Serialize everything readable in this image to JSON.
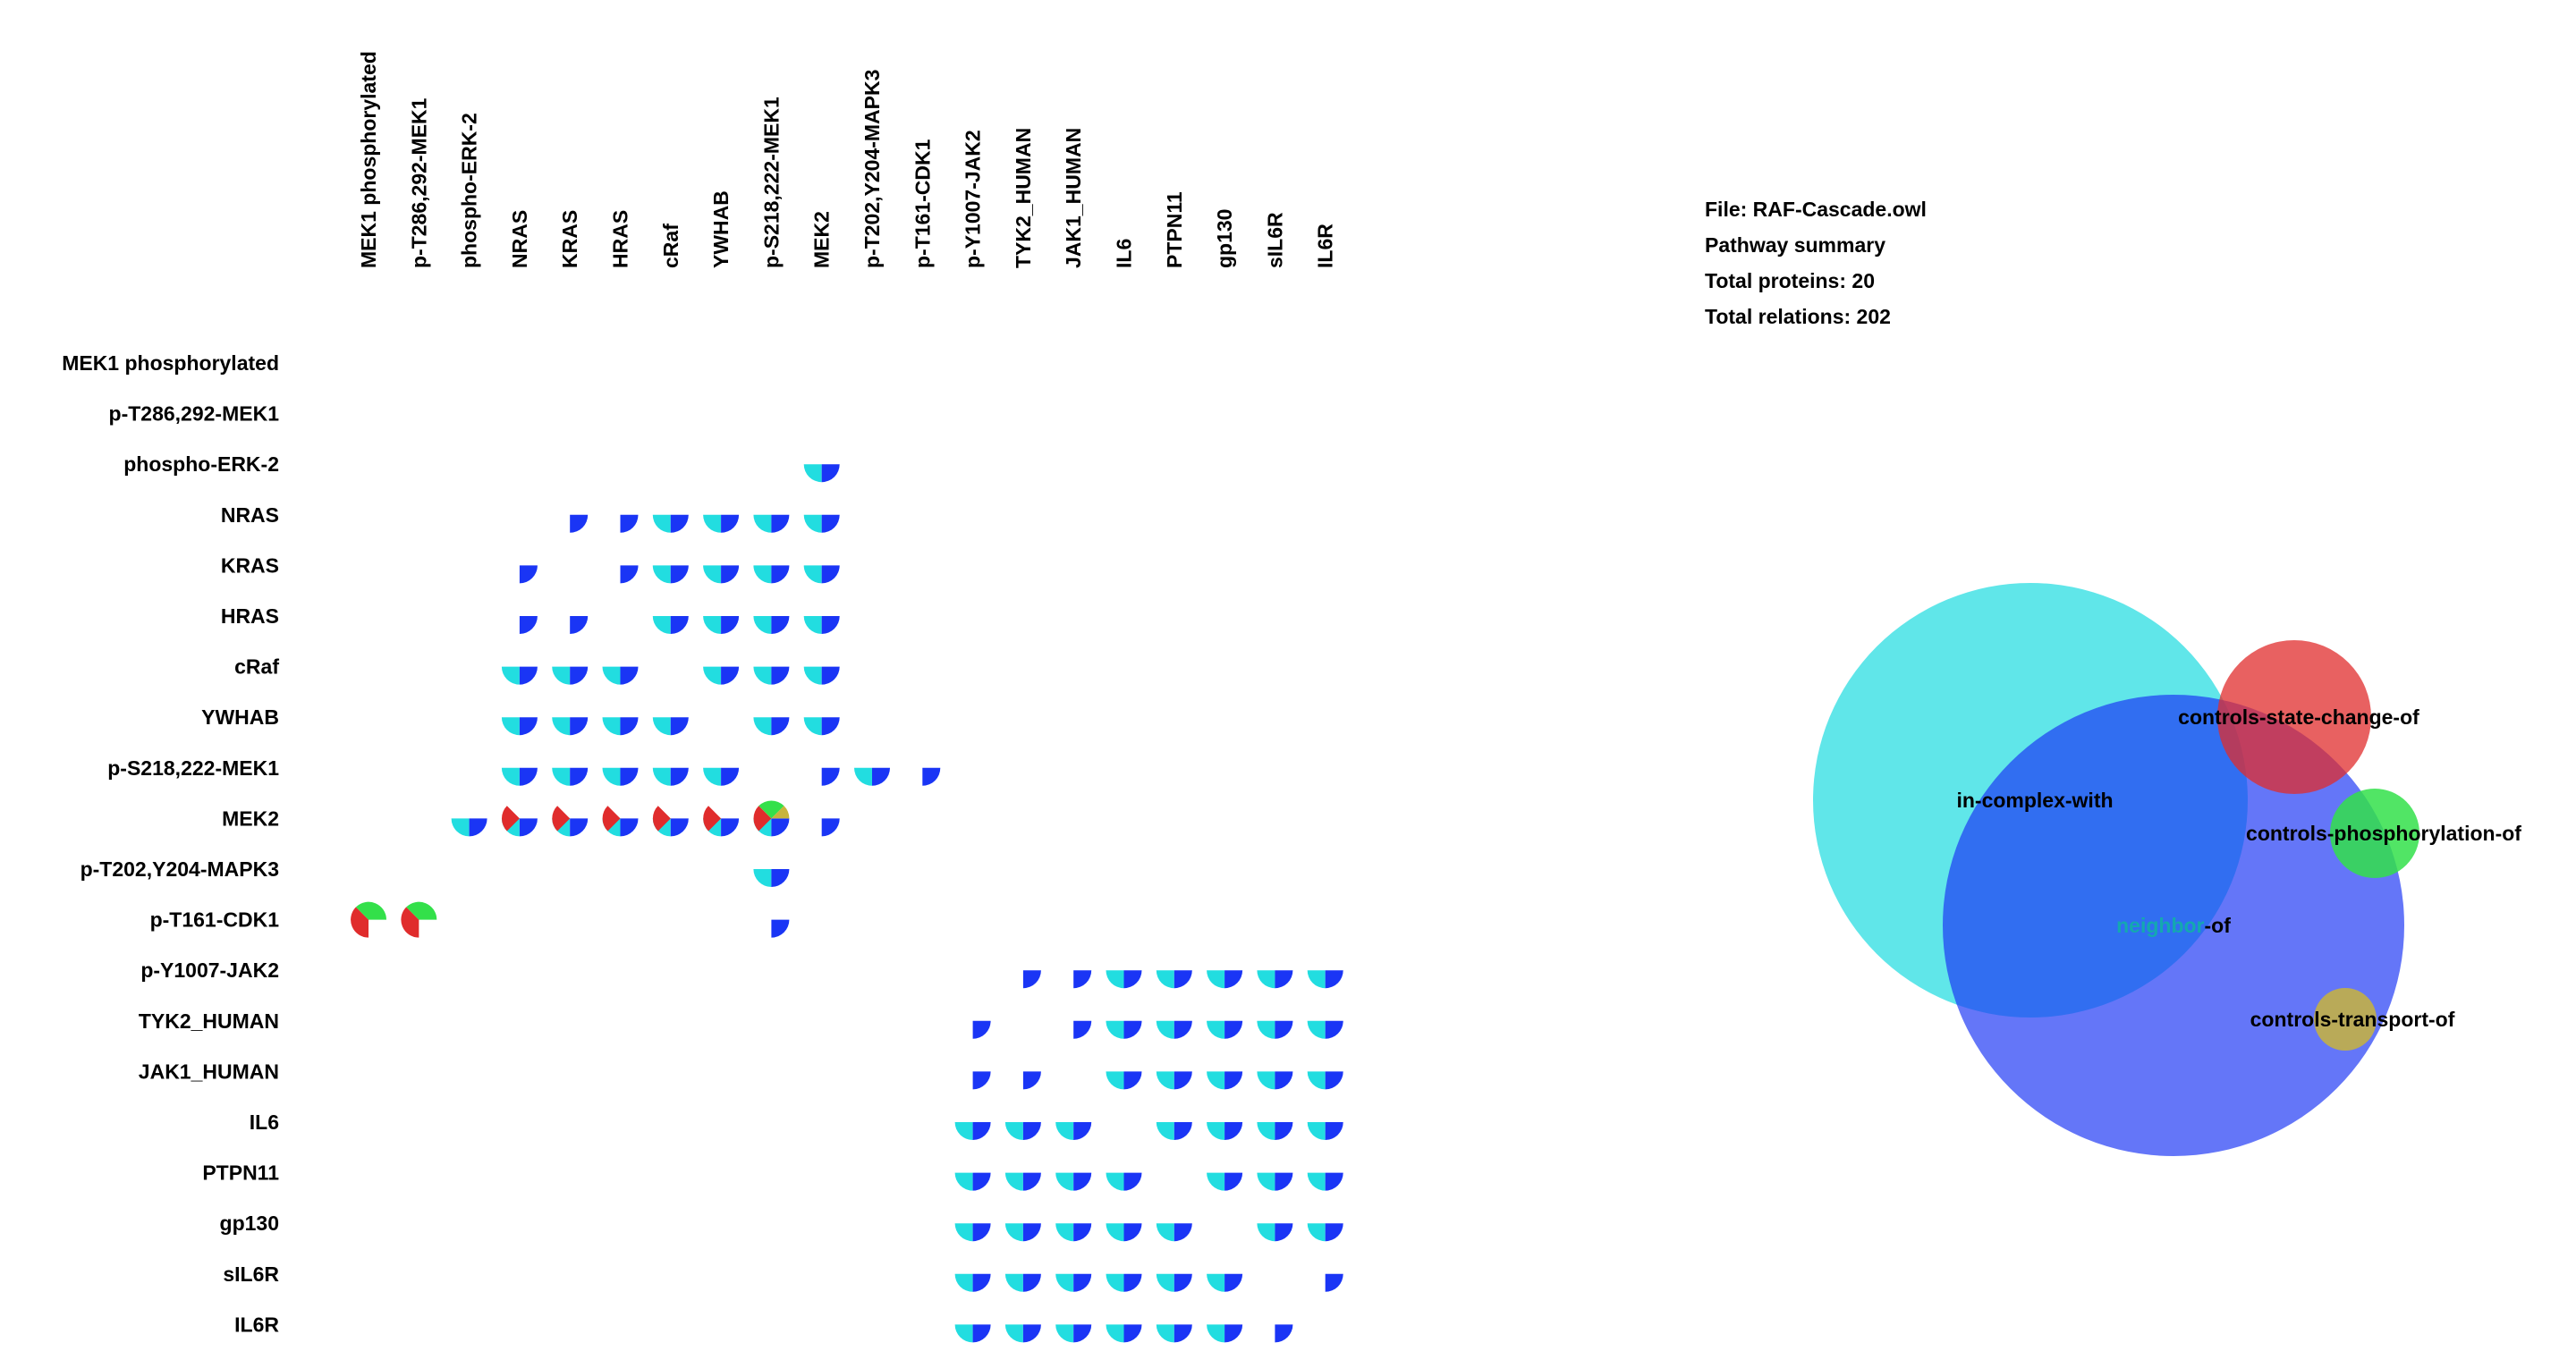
{
  "summary": {
    "file": "File: RAF-Cascade.owl",
    "heading": "Pathway summary",
    "proteins": "Total proteins: 20",
    "relations": "Total relations: 202"
  },
  "proteins": [
    "MEK1 phosphorylated",
    "p-T286,292-MEK1",
    "phospho-ERK-2",
    "NRAS",
    "KRAS",
    "HRAS",
    "cRaf",
    "YWHAB",
    "p-S218,222-MEK1",
    "MEK2",
    "p-T202,Y204-MAPK3",
    "p-T161-CDK1",
    "p-Y1007-JAK2",
    "TYK2_HUMAN",
    "JAK1_HUMAN",
    "IL6",
    "PTPN11",
    "gp130",
    "sIL6R",
    "IL6R"
  ],
  "colors": {
    "in_complex_with": "#22dde0",
    "neighbor_of": "#1a35f5",
    "controls_state_change_of": "#e02c2c",
    "controls_phosphorylation_of": "#33e04a",
    "controls_transport_of": "#c8b43c"
  },
  "matrix": {
    "comment_types": "ic=in-complex-with, nb=neighbor-of, sc=controls-state-change-of, ph=controls-phosphorylation-of, tr=controls-transport-of",
    "cells": [
      {
        "r": 2,
        "c": 9,
        "t": [
          "ic",
          "nb"
        ]
      },
      {
        "r": 3,
        "c": 4,
        "t": [
          "nb"
        ]
      },
      {
        "r": 3,
        "c": 5,
        "t": [
          "nb"
        ]
      },
      {
        "r": 3,
        "c": 6,
        "t": [
          "ic",
          "nb"
        ]
      },
      {
        "r": 3,
        "c": 7,
        "t": [
          "ic",
          "nb"
        ]
      },
      {
        "r": 3,
        "c": 8,
        "t": [
          "ic",
          "nb"
        ]
      },
      {
        "r": 3,
        "c": 9,
        "t": [
          "ic",
          "nb"
        ]
      },
      {
        "r": 4,
        "c": 3,
        "t": [
          "nb"
        ]
      },
      {
        "r": 4,
        "c": 5,
        "t": [
          "nb"
        ]
      },
      {
        "r": 4,
        "c": 6,
        "t": [
          "ic",
          "nb"
        ]
      },
      {
        "r": 4,
        "c": 7,
        "t": [
          "ic",
          "nb"
        ]
      },
      {
        "r": 4,
        "c": 8,
        "t": [
          "ic",
          "nb"
        ]
      },
      {
        "r": 4,
        "c": 9,
        "t": [
          "ic",
          "nb"
        ]
      },
      {
        "r": 5,
        "c": 3,
        "t": [
          "nb"
        ]
      },
      {
        "r": 5,
        "c": 4,
        "t": [
          "nb"
        ]
      },
      {
        "r": 5,
        "c": 6,
        "t": [
          "ic",
          "nb"
        ]
      },
      {
        "r": 5,
        "c": 7,
        "t": [
          "ic",
          "nb"
        ]
      },
      {
        "r": 5,
        "c": 8,
        "t": [
          "ic",
          "nb"
        ]
      },
      {
        "r": 5,
        "c": 9,
        "t": [
          "ic",
          "nb"
        ]
      },
      {
        "r": 6,
        "c": 3,
        "t": [
          "ic",
          "nb"
        ]
      },
      {
        "r": 6,
        "c": 4,
        "t": [
          "ic",
          "nb"
        ]
      },
      {
        "r": 6,
        "c": 5,
        "t": [
          "ic",
          "nb"
        ]
      },
      {
        "r": 6,
        "c": 7,
        "t": [
          "ic",
          "nb"
        ]
      },
      {
        "r": 6,
        "c": 8,
        "t": [
          "ic",
          "nb"
        ]
      },
      {
        "r": 6,
        "c": 9,
        "t": [
          "ic",
          "nb"
        ]
      },
      {
        "r": 7,
        "c": 3,
        "t": [
          "ic",
          "nb"
        ]
      },
      {
        "r": 7,
        "c": 4,
        "t": [
          "ic",
          "nb"
        ]
      },
      {
        "r": 7,
        "c": 5,
        "t": [
          "ic",
          "nb"
        ]
      },
      {
        "r": 7,
        "c": 6,
        "t": [
          "ic",
          "nb"
        ]
      },
      {
        "r": 7,
        "c": 8,
        "t": [
          "ic",
          "nb"
        ]
      },
      {
        "r": 7,
        "c": 9,
        "t": [
          "ic",
          "nb"
        ]
      },
      {
        "r": 8,
        "c": 3,
        "t": [
          "ic",
          "nb"
        ]
      },
      {
        "r": 8,
        "c": 4,
        "t": [
          "ic",
          "nb"
        ]
      },
      {
        "r": 8,
        "c": 5,
        "t": [
          "ic",
          "nb"
        ]
      },
      {
        "r": 8,
        "c": 6,
        "t": [
          "ic",
          "nb"
        ]
      },
      {
        "r": 8,
        "c": 7,
        "t": [
          "ic",
          "nb"
        ]
      },
      {
        "r": 8,
        "c": 9,
        "t": [
          "nb"
        ]
      },
      {
        "r": 8,
        "c": 10,
        "t": [
          "ic",
          "nb"
        ]
      },
      {
        "r": 8,
        "c": 11,
        "t": [
          "nb"
        ]
      },
      {
        "r": 9,
        "c": 2,
        "t": [
          "ic",
          "nb"
        ]
      },
      {
        "r": 9,
        "c": 3,
        "t": [
          "ic",
          "nb",
          "sc"
        ]
      },
      {
        "r": 9,
        "c": 4,
        "t": [
          "ic",
          "nb",
          "sc"
        ]
      },
      {
        "r": 9,
        "c": 5,
        "t": [
          "ic",
          "nb",
          "sc"
        ]
      },
      {
        "r": 9,
        "c": 6,
        "t": [
          "ic",
          "nb",
          "sc"
        ]
      },
      {
        "r": 9,
        "c": 7,
        "t": [
          "ic",
          "nb",
          "sc"
        ]
      },
      {
        "r": 9,
        "c": 8,
        "t": [
          "ic",
          "nb",
          "sc",
          "ph",
          "tr"
        ]
      },
      {
        "r": 9,
        "c": 9,
        "t": [
          "nb"
        ]
      },
      {
        "r": 10,
        "c": 8,
        "t": [
          "ic",
          "nb"
        ]
      },
      {
        "r": 11,
        "c": 0,
        "t": [
          "sc",
          "ph"
        ]
      },
      {
        "r": 11,
        "c": 1,
        "t": [
          "sc",
          "ph"
        ]
      },
      {
        "r": 11,
        "c": 8,
        "t": [
          "nb"
        ]
      },
      {
        "r": 12,
        "c": 13,
        "t": [
          "nb"
        ]
      },
      {
        "r": 12,
        "c": 14,
        "t": [
          "nb"
        ]
      },
      {
        "r": 12,
        "c": 15,
        "t": [
          "ic",
          "nb"
        ]
      },
      {
        "r": 12,
        "c": 16,
        "t": [
          "ic",
          "nb"
        ]
      },
      {
        "r": 12,
        "c": 17,
        "t": [
          "ic",
          "nb"
        ]
      },
      {
        "r": 12,
        "c": 18,
        "t": [
          "ic",
          "nb"
        ]
      },
      {
        "r": 12,
        "c": 19,
        "t": [
          "ic",
          "nb"
        ]
      },
      {
        "r": 13,
        "c": 12,
        "t": [
          "nb"
        ]
      },
      {
        "r": 13,
        "c": 14,
        "t": [
          "nb"
        ]
      },
      {
        "r": 13,
        "c": 15,
        "t": [
          "ic",
          "nb"
        ]
      },
      {
        "r": 13,
        "c": 16,
        "t": [
          "ic",
          "nb"
        ]
      },
      {
        "r": 13,
        "c": 17,
        "t": [
          "ic",
          "nb"
        ]
      },
      {
        "r": 13,
        "c": 18,
        "t": [
          "ic",
          "nb"
        ]
      },
      {
        "r": 13,
        "c": 19,
        "t": [
          "ic",
          "nb"
        ]
      },
      {
        "r": 14,
        "c": 12,
        "t": [
          "nb"
        ]
      },
      {
        "r": 14,
        "c": 13,
        "t": [
          "nb"
        ]
      },
      {
        "r": 14,
        "c": 15,
        "t": [
          "ic",
          "nb"
        ]
      },
      {
        "r": 14,
        "c": 16,
        "t": [
          "ic",
          "nb"
        ]
      },
      {
        "r": 14,
        "c": 17,
        "t": [
          "ic",
          "nb"
        ]
      },
      {
        "r": 14,
        "c": 18,
        "t": [
          "ic",
          "nb"
        ]
      },
      {
        "r": 14,
        "c": 19,
        "t": [
          "ic",
          "nb"
        ]
      },
      {
        "r": 15,
        "c": 12,
        "t": [
          "ic",
          "nb"
        ]
      },
      {
        "r": 15,
        "c": 13,
        "t": [
          "ic",
          "nb"
        ]
      },
      {
        "r": 15,
        "c": 14,
        "t": [
          "ic",
          "nb"
        ]
      },
      {
        "r": 15,
        "c": 16,
        "t": [
          "ic",
          "nb"
        ]
      },
      {
        "r": 15,
        "c": 17,
        "t": [
          "ic",
          "nb"
        ]
      },
      {
        "r": 15,
        "c": 18,
        "t": [
          "ic",
          "nb"
        ]
      },
      {
        "r": 15,
        "c": 19,
        "t": [
          "ic",
          "nb"
        ]
      },
      {
        "r": 16,
        "c": 12,
        "t": [
          "ic",
          "nb"
        ]
      },
      {
        "r": 16,
        "c": 13,
        "t": [
          "ic",
          "nb"
        ]
      },
      {
        "r": 16,
        "c": 14,
        "t": [
          "ic",
          "nb"
        ]
      },
      {
        "r": 16,
        "c": 15,
        "t": [
          "ic",
          "nb"
        ]
      },
      {
        "r": 16,
        "c": 17,
        "t": [
          "ic",
          "nb"
        ]
      },
      {
        "r": 16,
        "c": 18,
        "t": [
          "ic",
          "nb"
        ]
      },
      {
        "r": 16,
        "c": 19,
        "t": [
          "ic",
          "nb"
        ]
      },
      {
        "r": 17,
        "c": 12,
        "t": [
          "ic",
          "nb"
        ]
      },
      {
        "r": 17,
        "c": 13,
        "t": [
          "ic",
          "nb"
        ]
      },
      {
        "r": 17,
        "c": 14,
        "t": [
          "ic",
          "nb"
        ]
      },
      {
        "r": 17,
        "c": 15,
        "t": [
          "ic",
          "nb"
        ]
      },
      {
        "r": 17,
        "c": 16,
        "t": [
          "ic",
          "nb"
        ]
      },
      {
        "r": 17,
        "c": 18,
        "t": [
          "ic",
          "nb"
        ]
      },
      {
        "r": 17,
        "c": 19,
        "t": [
          "ic",
          "nb"
        ]
      },
      {
        "r": 18,
        "c": 12,
        "t": [
          "ic",
          "nb"
        ]
      },
      {
        "r": 18,
        "c": 13,
        "t": [
          "ic",
          "nb"
        ]
      },
      {
        "r": 18,
        "c": 14,
        "t": [
          "ic",
          "nb"
        ]
      },
      {
        "r": 18,
        "c": 15,
        "t": [
          "ic",
          "nb"
        ]
      },
      {
        "r": 18,
        "c": 16,
        "t": [
          "ic",
          "nb"
        ]
      },
      {
        "r": 18,
        "c": 17,
        "t": [
          "ic",
          "nb"
        ]
      },
      {
        "r": 18,
        "c": 19,
        "t": [
          "nb"
        ]
      },
      {
        "r": 19,
        "c": 12,
        "t": [
          "ic",
          "nb"
        ]
      },
      {
        "r": 19,
        "c": 13,
        "t": [
          "ic",
          "nb"
        ]
      },
      {
        "r": 19,
        "c": 14,
        "t": [
          "ic",
          "nb"
        ]
      },
      {
        "r": 19,
        "c": 15,
        "t": [
          "ic",
          "nb"
        ]
      },
      {
        "r": 19,
        "c": 16,
        "t": [
          "ic",
          "nb"
        ]
      },
      {
        "r": 19,
        "c": 17,
        "t": [
          "ic",
          "nb"
        ]
      },
      {
        "r": 19,
        "c": 18,
        "t": [
          "nb"
        ]
      }
    ]
  },
  "venn": {
    "sets": [
      {
        "key": "in_complex_with",
        "label": "in-complex-with"
      },
      {
        "key": "neighbor_of",
        "label_a": "neighbor",
        "label_b": "-of"
      },
      {
        "key": "controls_state_change_of",
        "label": "controls-state-change-of"
      },
      {
        "key": "controls_phosphorylation_of",
        "label": "controls-phosphorylation-of"
      },
      {
        "key": "controls_transport_of",
        "label": "controls-transport-of"
      }
    ]
  }
}
